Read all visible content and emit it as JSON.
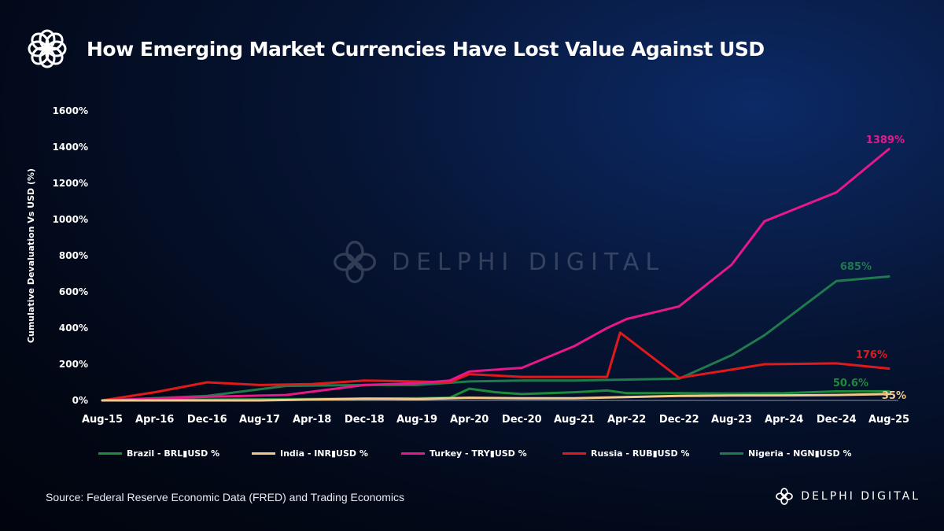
{
  "header": {
    "title": "How Emerging Market Currencies Have Lost Value Against USD"
  },
  "watermark": {
    "text": "DELPHI DIGITAL"
  },
  "footer": {
    "source": "Source: Federal Reserve Economic Data (FRED) and Trading Economics",
    "brand": "DELPHI DIGITAL"
  },
  "colors": {
    "brazil": "#1f8a3c",
    "india": "#f3c98b",
    "turkey": "#e8178a",
    "russia": "#e01a1a",
    "nigeria": "#1f7a4c"
  },
  "chart_data": {
    "type": "line",
    "title": "How Emerging Market Currencies Have Lost Value Against USD",
    "xlabel": "",
    "ylabel": "Cumulative Devaluation Vs USD (%)",
    "ylim": [
      0,
      1600
    ],
    "grid": false,
    "legend_position": "bottom",
    "x_ticks": [
      "Aug-15",
      "Apr-16",
      "Dec-16",
      "Aug-17",
      "Apr-18",
      "Dec-18",
      "Aug-19",
      "Apr-20",
      "Dec-20",
      "Aug-21",
      "Apr-22",
      "Dec-22",
      "Aug-23",
      "Apr-24",
      "Dec-24",
      "Aug-25"
    ],
    "y_ticks": [
      "0%",
      "200%",
      "400%",
      "600%",
      "800%",
      "1000%",
      "1200%",
      "1400%",
      "1600%"
    ],
    "series": [
      {
        "name": "Brazil - BRL▮USD %",
        "color_key": "brazil",
        "points": [
          [
            "Aug-15",
            0
          ],
          [
            "Dec-16",
            5
          ],
          [
            "Dec-18",
            10
          ],
          [
            "Aug-19",
            12
          ],
          [
            "Jan-20",
            15
          ],
          [
            "Apr-20",
            65
          ],
          [
            "Aug-20",
            45
          ],
          [
            "Dec-20",
            35
          ],
          [
            "Aug-21",
            45
          ],
          [
            "Jan-22",
            55
          ],
          [
            "Apr-22",
            40
          ],
          [
            "Dec-22",
            40
          ],
          [
            "Aug-23",
            38
          ],
          [
            "Apr-24",
            40
          ],
          [
            "Dec-24",
            50
          ],
          [
            "Aug-25",
            50.6
          ]
        ],
        "end_label": "50.6%"
      },
      {
        "name": "India - INR▮USD %",
        "color_key": "india",
        "points": [
          [
            "Aug-15",
            0
          ],
          [
            "Aug-17",
            0
          ],
          [
            "Dec-18",
            10
          ],
          [
            "Aug-19",
            8
          ],
          [
            "Apr-20",
            15
          ],
          [
            "Dec-20",
            12
          ],
          [
            "Aug-21",
            12
          ],
          [
            "Dec-22",
            25
          ],
          [
            "Aug-23",
            27
          ],
          [
            "Apr-24",
            28
          ],
          [
            "Dec-24",
            30
          ],
          [
            "Aug-25",
            35
          ]
        ],
        "end_label": "35%"
      },
      {
        "name": "Turkey - TRY▮USD %",
        "color_key": "turkey",
        "points": [
          [
            "Aug-15",
            0
          ],
          [
            "Dec-16",
            20
          ],
          [
            "Dec-17",
            30
          ],
          [
            "Dec-18",
            85
          ],
          [
            "Aug-19",
            95
          ],
          [
            "Jan-20",
            110
          ],
          [
            "Apr-20",
            160
          ],
          [
            "Dec-20",
            180
          ],
          [
            "Aug-21",
            300
          ],
          [
            "Jan-22",
            400
          ],
          [
            "Apr-22",
            450
          ],
          [
            "Dec-22",
            520
          ],
          [
            "Aug-23",
            750
          ],
          [
            "Jan-24",
            990
          ],
          [
            "Dec-24",
            1150
          ],
          [
            "Aug-25",
            1389
          ]
        ],
        "end_label": "1389%"
      },
      {
        "name": "Russia - RUB▮USD %",
        "color_key": "russia",
        "points": [
          [
            "Aug-15",
            0
          ],
          [
            "Apr-16",
            45
          ],
          [
            "Dec-16",
            100
          ],
          [
            "Aug-17",
            85
          ],
          [
            "Apr-18",
            90
          ],
          [
            "Dec-18",
            110
          ],
          [
            "Aug-19",
            105
          ],
          [
            "Jan-20",
            100
          ],
          [
            "Apr-20",
            145
          ],
          [
            "Dec-20",
            130
          ],
          [
            "Aug-21",
            130
          ],
          [
            "Jan-22",
            130
          ],
          [
            "Mar-22",
            375
          ],
          [
            "Dec-22",
            125
          ],
          [
            "Aug-23",
            170
          ],
          [
            "Jan-24",
            200
          ],
          [
            "Dec-24",
            205
          ],
          [
            "Aug-25",
            176
          ]
        ],
        "end_label": "176%"
      },
      {
        "name": "Nigeria - NGN▮USD %",
        "color_key": "nigeria",
        "points": [
          [
            "Aug-15",
            0
          ],
          [
            "Dec-16",
            25
          ],
          [
            "Dec-17",
            80
          ],
          [
            "Dec-18",
            85
          ],
          [
            "Aug-19",
            85
          ],
          [
            "Apr-20",
            105
          ],
          [
            "Dec-20",
            110
          ],
          [
            "Aug-21",
            110
          ],
          [
            "Dec-22",
            120
          ],
          [
            "Aug-23",
            250
          ],
          [
            "Jan-24",
            360
          ],
          [
            "Dec-24",
            660
          ],
          [
            "Aug-25",
            685
          ]
        ],
        "end_label": "685%"
      }
    ]
  }
}
